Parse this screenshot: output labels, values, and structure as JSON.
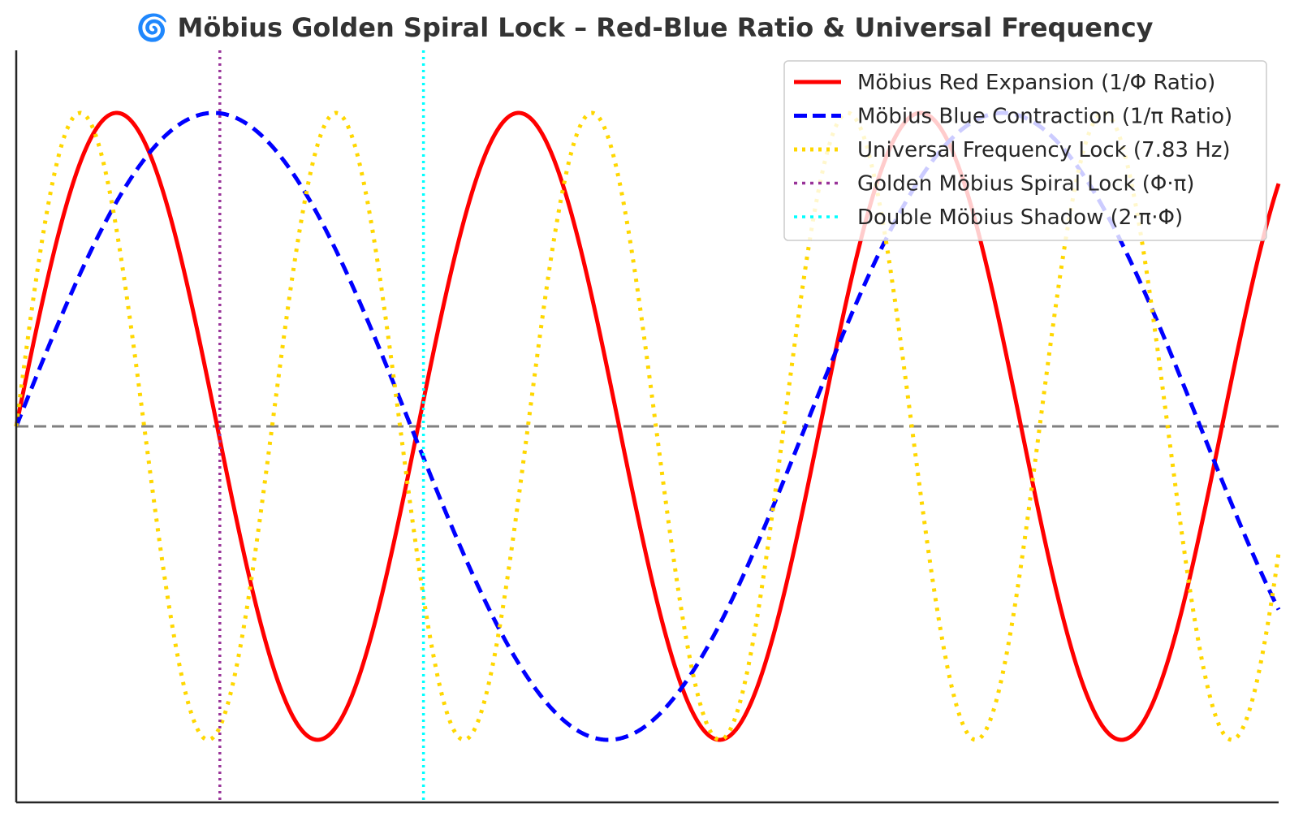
{
  "chart_data": {
    "type": "line",
    "title": "🌀 Möbius Golden Spiral Lock – Red-Blue Ratio & Universal Frequency",
    "xlabel": "",
    "ylabel": "",
    "xlim": [
      0,
      6.2
    ],
    "ylim": [
      -1.2,
      1.2
    ],
    "grid": false,
    "legend_position": "top-right",
    "x_ticks_visible": false,
    "y_ticks_visible": false,
    "series": [
      {
        "name": "Möbius Red Expansion (1/Φ Ratio)",
        "function": "sin",
        "frequency": 3.1831,
        "amplitude": 1,
        "color": "#ff0000",
        "style": "solid"
      },
      {
        "name": "Möbius Blue Contraction (1/π Ratio)",
        "function": "sin",
        "frequency": 1.6208,
        "amplitude": 1,
        "color": "#0000ff",
        "style": "dashed"
      },
      {
        "name": "Universal Frequency Lock (7.83 Hz)",
        "function": "sin",
        "frequency": 5.0,
        "amplitude": 1,
        "color": "#ffd700",
        "style": "dotted"
      }
    ],
    "vertical_lines": [
      {
        "name": "Golden Möbius Spiral Lock (Φ·π)",
        "x": 1.0,
        "color": "#993399",
        "style": "dotted"
      },
      {
        "name": "Double Möbius Shadow (2·π·Φ)",
        "x": 2.0,
        "color": "#00ffff",
        "style": "dotted"
      }
    ],
    "horizontal_lines": [
      {
        "y": 0,
        "color": "#808080",
        "style": "dashed"
      }
    ]
  }
}
